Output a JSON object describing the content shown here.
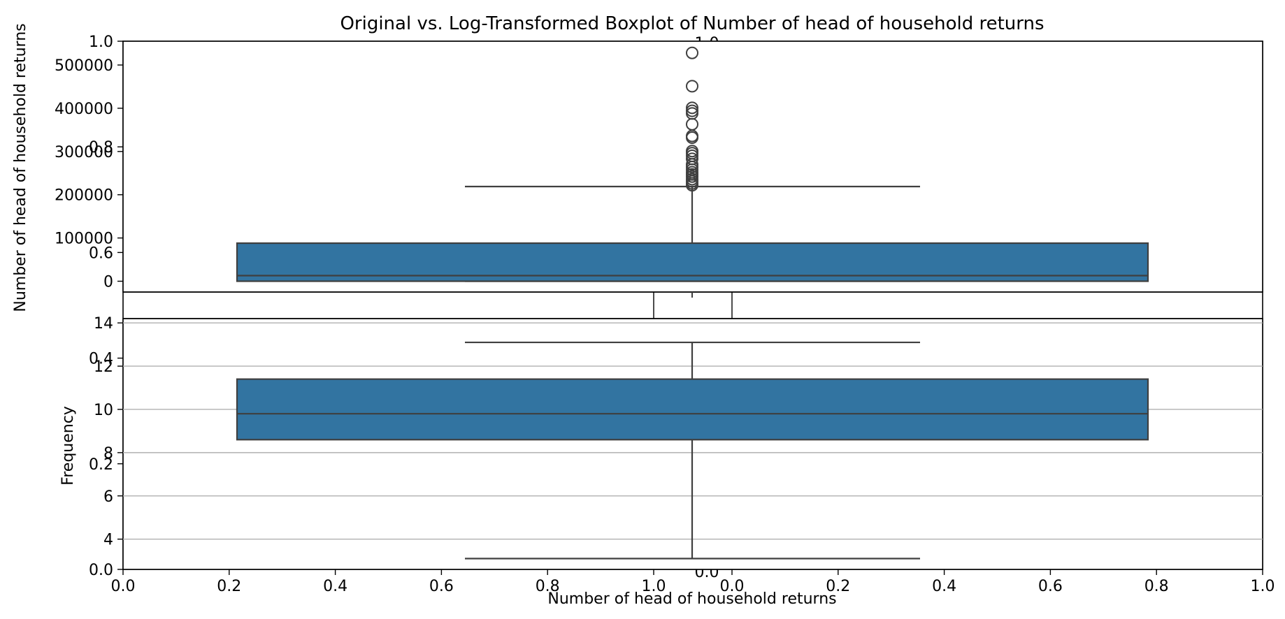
{
  "title": "Original vs. Log-Transformed Boxplot of Number of head of household returns",
  "xlabel": "Number of head of household returns",
  "colors": {
    "box_fill": "#3274a1",
    "box_edge": "#3f3f3f",
    "grid": "#b0b0b0",
    "axis": "#000000"
  },
  "chart_data": [
    {
      "type": "boxplot",
      "role": "outer-figure-axes",
      "x_ticks": [
        "0.0",
        "0.2",
        "0.4",
        "0.6",
        "0.8",
        "1.0"
      ],
      "y_ticks": [
        "0.0",
        "0.2",
        "0.4",
        "0.6",
        "0.8",
        "1.0"
      ],
      "xlim": [
        0,
        1
      ],
      "ylim": [
        0,
        1
      ],
      "grid": false,
      "x_ticks_split": {
        "left": [
          "0.0",
          "0.2",
          "0.4",
          "0.6",
          "0.8",
          "1.0"
        ],
        "right": [
          "0.0",
          "0.2",
          "0.4",
          "0.6",
          "0.8",
          "1.0"
        ]
      },
      "ylabel": "Frequency"
    },
    {
      "type": "boxplot",
      "role": "original",
      "ylabel": "Number of head of household returns",
      "ylim": [
        -25000,
        555000
      ],
      "y_ticks": [
        0,
        100000,
        200000,
        300000,
        400000,
        500000
      ],
      "y_tick_labels": [
        "0",
        "100000",
        "200000",
        "300000",
        "400000",
        "500000"
      ],
      "grid": false,
      "stats": {
        "whisker_low": 0,
        "q1": 0,
        "median": 13000,
        "q3": 88000,
        "whisker_high": 219000
      },
      "outliers": [
        222000,
        226000,
        231000,
        236000,
        242000,
        247000,
        252000,
        258000,
        264000,
        270000,
        283000,
        290000,
        296000,
        301000,
        332000,
        336000,
        363000,
        388000,
        394000,
        401000,
        451000,
        528000
      ]
    },
    {
      "type": "boxplot",
      "role": "log-transformed",
      "ylabel": "",
      "ylim": [
        2.6,
        14.2
      ],
      "y_ticks": [
        4,
        6,
        8,
        10,
        12,
        14
      ],
      "y_tick_labels": [
        "4",
        "6",
        "8",
        "10",
        "12",
        "14"
      ],
      "grid": true,
      "stats": {
        "whisker_low": 3.1,
        "q1": 8.6,
        "median": 9.8,
        "q3": 11.4,
        "whisker_high": 13.1
      },
      "outliers": []
    }
  ]
}
